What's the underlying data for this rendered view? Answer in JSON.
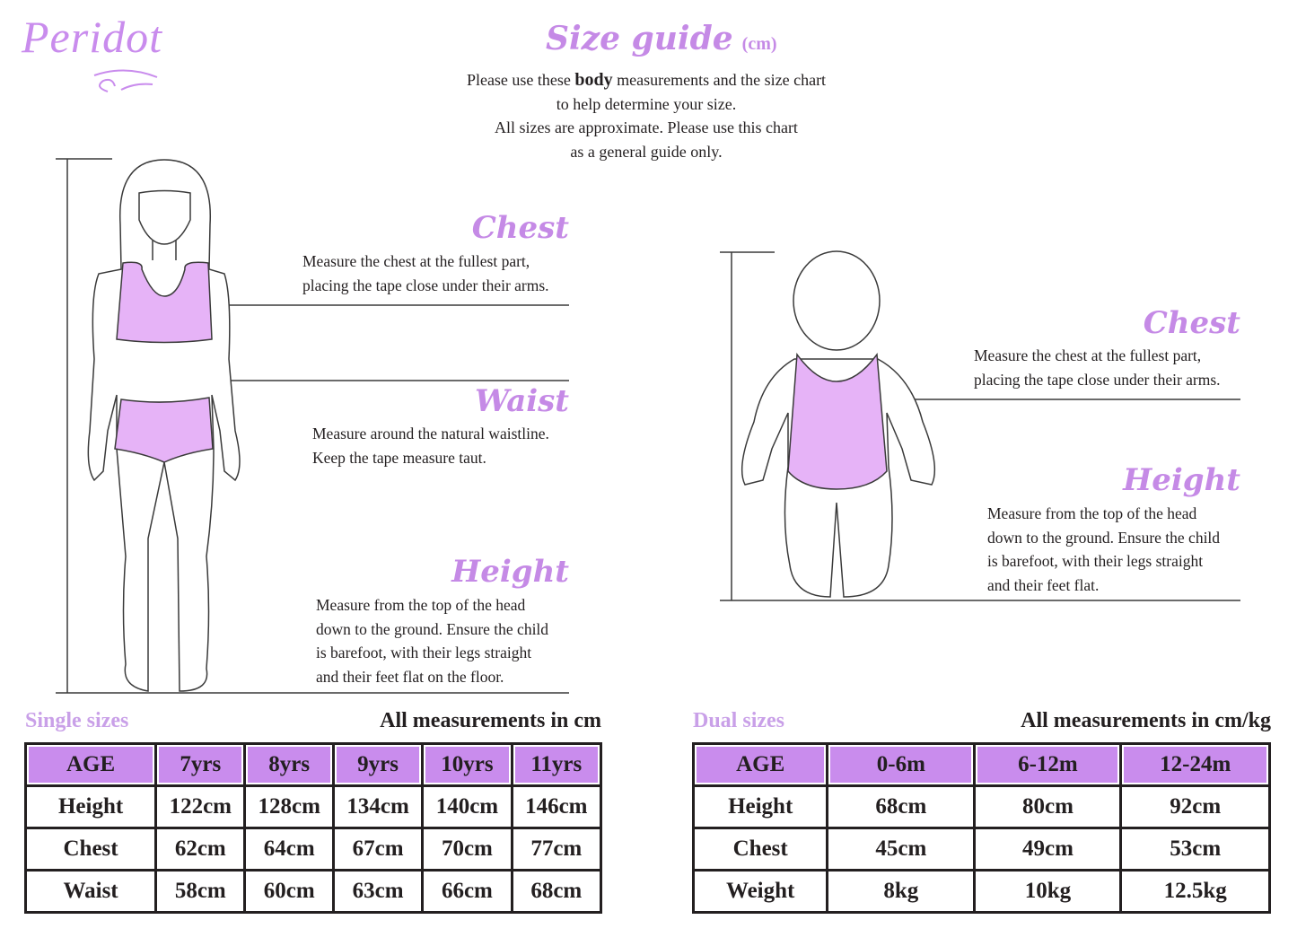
{
  "brand": {
    "logo_text": "Peridot"
  },
  "header": {
    "title": "Size guide",
    "unit": "(cm)",
    "intro_pre": "Please use these ",
    "intro_bold": "body",
    "intro_post": " measurements and the size chart",
    "intro_lines": [
      "to help determine your size.",
      "All sizes are approximate. Please use this chart",
      "as a general guide only."
    ]
  },
  "colors": {
    "accent": "#c58ae6",
    "table_header": "#c98ced",
    "garment_fill": "#e6b3f7",
    "outline": "#3a3a3a"
  },
  "child_figure": {
    "chest": {
      "title": "Chest",
      "lines": [
        "Measure the chest at the fullest part,",
        "placing the tape close under their arms."
      ]
    },
    "waist": {
      "title": "Waist",
      "lines": [
        "Measure around the natural waistline.",
        "Keep the tape measure taut."
      ]
    },
    "height": {
      "title": "Height",
      "lines": [
        "Measure from the top of the head",
        "down to the ground. Ensure the child",
        "is barefoot, with their legs straight",
        "and their feet flat on the floor."
      ]
    }
  },
  "baby_figure": {
    "chest": {
      "title": "Chest",
      "lines": [
        "Measure the chest at the fullest part,",
        "placing the tape close under their arms."
      ]
    },
    "height": {
      "title": "Height",
      "lines": [
        "Measure from the top of the head",
        "down to the ground. Ensure the child",
        "is barefoot, with their legs straight",
        "and their feet flat."
      ]
    }
  },
  "single_sizes": {
    "label": "Single sizes",
    "unit_note": "All measurements in cm",
    "header": [
      "AGE",
      "7yrs",
      "8yrs",
      "9yrs",
      "10yrs",
      "11yrs"
    ],
    "rows": [
      [
        "Height",
        "122cm",
        "128cm",
        "134cm",
        "140cm",
        "146cm"
      ],
      [
        "Chest",
        "62cm",
        "64cm",
        "67cm",
        "70cm",
        "77cm"
      ],
      [
        "Waist",
        "58cm",
        "60cm",
        "63cm",
        "66cm",
        "68cm"
      ]
    ]
  },
  "dual_sizes": {
    "label": "Dual sizes",
    "unit_note": "All measurements in cm/kg",
    "header": [
      "AGE",
      "0-6m",
      "6-12m",
      "12-24m"
    ],
    "rows": [
      [
        "Height",
        "68cm",
        "80cm",
        "92cm"
      ],
      [
        "Chest",
        "45cm",
        "49cm",
        "53cm"
      ],
      [
        "Weight",
        "8kg",
        "10kg",
        "12.5kg"
      ]
    ]
  }
}
